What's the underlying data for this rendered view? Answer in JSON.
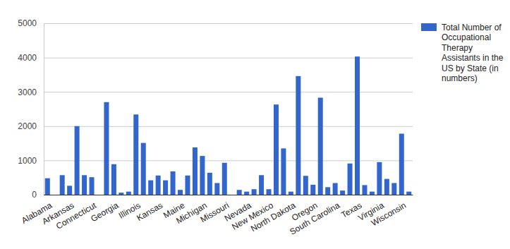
{
  "chart_data": {
    "type": "bar",
    "categories": [
      "Alabama",
      null,
      null,
      "Arkansas",
      null,
      null,
      "Connecticut",
      null,
      null,
      "Georgia",
      null,
      null,
      "Illinois",
      null,
      null,
      "Kansas",
      null,
      null,
      "Maine",
      null,
      null,
      "Michigan",
      null,
      null,
      "Missouri",
      null,
      null,
      "Nevada",
      null,
      null,
      "New Mexico",
      null,
      null,
      "North Dakota",
      null,
      null,
      "Oregon",
      null,
      null,
      "South Carolina",
      null,
      null,
      "Texas",
      null,
      null,
      "Virginia",
      null,
      null,
      "Wisconsin",
      null
    ],
    "series": [
      {
        "name": "Total Number of Occupational Therapy Assistants in the US by State (in numbers)",
        "color": "#3366cc",
        "values": [
          480,
          0,
          570,
          260,
          2000,
          570,
          510,
          0,
          2700,
          890,
          60,
          90,
          2340,
          1510,
          420,
          560,
          420,
          680,
          140,
          560,
          1380,
          1130,
          640,
          340,
          930,
          0,
          140,
          90,
          160,
          570,
          160,
          2630,
          1350,
          90,
          3460,
          550,
          290,
          2830,
          220,
          340,
          120,
          910,
          4030,
          280,
          90,
          950,
          460,
          340,
          1780,
          90
        ]
      }
    ],
    "ylim": [
      0,
      5000
    ],
    "yticks": [
      0,
      1000,
      2000,
      3000,
      4000,
      5000
    ],
    "grid": true,
    "legend": "right"
  }
}
